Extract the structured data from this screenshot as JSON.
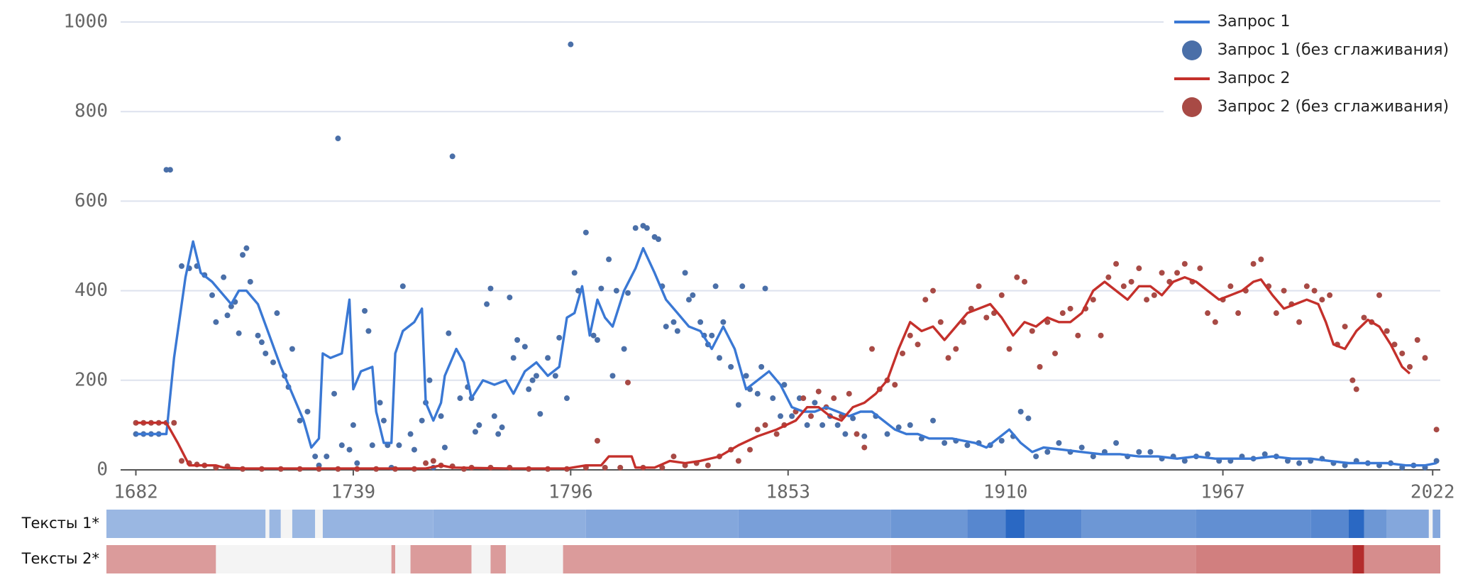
{
  "chart_data": {
    "type": "line",
    "xlim": [
      1678,
      2024
    ],
    "ylim": [
      0,
      1000
    ],
    "xticks": [
      1682,
      1739,
      1796,
      1853,
      1910,
      1967,
      2022
    ],
    "yticks": [
      0,
      200,
      400,
      600,
      800,
      1000
    ],
    "grid": true,
    "legend": "top-right",
    "series": [
      {
        "name": "Запрос 1",
        "type": "line",
        "color": "#3a78d4",
        "x": [
          1682,
          1686,
          1690,
          1692,
          1695,
          1697,
          1699,
          1702,
          1705,
          1707,
          1709,
          1711,
          1714,
          1717,
          1720,
          1723,
          1726,
          1728,
          1730,
          1731,
          1733,
          1736,
          1738,
          1739,
          1741,
          1744,
          1745,
          1747,
          1749,
          1750,
          1752,
          1755,
          1757,
          1758,
          1760,
          1762,
          1763,
          1766,
          1768,
          1770,
          1773,
          1776,
          1779,
          1781,
          1784,
          1787,
          1790,
          1793,
          1795,
          1797,
          1799,
          1801,
          1803,
          1805,
          1807,
          1810,
          1813,
          1815,
          1818,
          1821,
          1824,
          1827,
          1830,
          1833,
          1836,
          1839,
          1842,
          1845,
          1848,
          1851,
          1854,
          1857,
          1860,
          1863,
          1866,
          1869,
          1872,
          1875,
          1878,
          1881,
          1884,
          1887,
          1890,
          1893,
          1896,
          1899,
          1902,
          1905,
          1908,
          1911,
          1914,
          1917,
          1920,
          1925,
          1930,
          1935,
          1940,
          1945,
          1950,
          1955,
          1960,
          1965,
          1970,
          1975,
          1980,
          1985,
          1990,
          1995,
          2000,
          2005,
          2010,
          2015,
          2020,
          2023
        ],
        "values": [
          80,
          80,
          80,
          250,
          430,
          510,
          440,
          420,
          390,
          370,
          400,
          400,
          370,
          300,
          230,
          170,
          110,
          50,
          70,
          260,
          250,
          260,
          380,
          180,
          220,
          230,
          130,
          60,
          60,
          260,
          310,
          330,
          360,
          150,
          110,
          150,
          210,
          270,
          240,
          160,
          200,
          190,
          200,
          170,
          220,
          240,
          210,
          230,
          340,
          350,
          410,
          300,
          380,
          340,
          320,
          400,
          450,
          495,
          440,
          380,
          350,
          320,
          310,
          270,
          320,
          270,
          180,
          200,
          220,
          190,
          140,
          130,
          130,
          140,
          130,
          120,
          130,
          130,
          110,
          90,
          80,
          80,
          70,
          70,
          70,
          65,
          60,
          50,
          70,
          90,
          60,
          40,
          50,
          45,
          40,
          35,
          35,
          30,
          30,
          25,
          30,
          25,
          25,
          25,
          30,
          25,
          25,
          20,
          15,
          15,
          15,
          10,
          10,
          15
        ]
      },
      {
        "name": "Запрос 1 (без сглаживания)",
        "type": "scatter",
        "color": "#4a6fa8",
        "x": [
          1682,
          1684,
          1686,
          1688,
          1690,
          1691,
          1694,
          1696,
          1698,
          1700,
          1702,
          1703,
          1705,
          1706,
          1707,
          1708,
          1709,
          1710,
          1711,
          1712,
          1714,
          1715,
          1716,
          1718,
          1719,
          1721,
          1722,
          1723,
          1725,
          1727,
          1729,
          1730,
          1732,
          1734,
          1735,
          1736,
          1738,
          1739,
          1740,
          1742,
          1743,
          1744,
          1746,
          1747,
          1748,
          1749,
          1751,
          1752,
          1754,
          1755,
          1757,
          1758,
          1759,
          1760,
          1762,
          1763,
          1764,
          1765,
          1767,
          1769,
          1770,
          1771,
          1772,
          1774,
          1775,
          1776,
          1777,
          1778,
          1780,
          1781,
          1782,
          1784,
          1785,
          1786,
          1787,
          1788,
          1790,
          1792,
          1793,
          1795,
          1796,
          1797,
          1798,
          1800,
          1802,
          1803,
          1804,
          1806,
          1807,
          1808,
          1810,
          1811,
          1813,
          1815,
          1816,
          1818,
          1819,
          1820,
          1821,
          1823,
          1824,
          1826,
          1827,
          1828,
          1830,
          1831,
          1832,
          1833,
          1834,
          1835,
          1836,
          1838,
          1840,
          1841,
          1842,
          1843,
          1845,
          1846,
          1847,
          1849,
          1851,
          1852,
          1854,
          1856,
          1858,
          1860,
          1862,
          1864,
          1866,
          1868,
          1870,
          1873,
          1876,
          1879,
          1882,
          1885,
          1888,
          1891,
          1894,
          1897,
          1900,
          1903,
          1906,
          1909,
          1912,
          1914,
          1916,
          1918,
          1921,
          1924,
          1927,
          1930,
          1933,
          1936,
          1939,
          1942,
          1945,
          1948,
          1951,
          1954,
          1957,
          1960,
          1963,
          1966,
          1969,
          1972,
          1975,
          1978,
          1981,
          1984,
          1987,
          1990,
          1993,
          1996,
          1999,
          2002,
          2005,
          2008,
          2011,
          2014,
          2017,
          2020,
          2023
        ],
        "values": [
          80,
          80,
          80,
          80,
          670,
          670,
          455,
          450,
          455,
          435,
          390,
          330,
          430,
          345,
          365,
          375,
          305,
          480,
          495,
          420,
          300,
          285,
          260,
          240,
          350,
          210,
          185,
          270,
          110,
          130,
          30,
          10,
          30,
          170,
          740,
          55,
          45,
          100,
          15,
          355,
          310,
          55,
          150,
          110,
          55,
          5,
          55,
          410,
          80,
          45,
          110,
          150,
          200,
          5,
          120,
          50,
          305,
          700,
          160,
          185,
          160,
          85,
          100,
          370,
          405,
          120,
          80,
          95,
          385,
          250,
          290,
          275,
          180,
          200,
          210,
          125,
          250,
          210,
          295,
          160,
          950,
          440,
          400,
          530,
          300,
          290,
          405,
          470,
          210,
          400,
          270,
          395,
          540,
          545,
          540,
          520,
          515,
          410,
          320,
          330,
          310,
          440,
          380,
          390,
          330,
          300,
          280,
          300,
          410,
          250,
          330,
          230,
          145,
          410,
          210,
          180,
          170,
          230,
          405,
          160,
          120,
          190,
          120,
          160,
          100,
          150,
          100,
          120,
          100,
          80,
          115,
          75,
          120,
          80,
          95,
          100,
          70,
          110,
          60,
          65,
          55,
          60,
          55,
          65,
          75,
          130,
          115,
          30,
          40,
          60,
          40,
          50,
          30,
          40,
          60,
          30,
          40,
          40,
          25,
          30,
          20,
          30,
          35,
          20,
          20,
          30,
          25,
          35,
          30,
          20,
          15,
          20,
          25,
          15,
          10,
          20,
          15,
          10,
          15,
          5,
          10,
          5,
          20
        ]
      },
      {
        "name": "Запрос 2",
        "type": "line",
        "color": "#c4302b",
        "x": [
          1682,
          1690,
          1693,
          1696,
          1700,
          1703,
          1705,
          1710,
          1720,
          1730,
          1740,
          1750,
          1758,
          1762,
          1765,
          1780,
          1795,
          1800,
          1804,
          1806,
          1812,
          1813,
          1818,
          1822,
          1826,
          1830,
          1835,
          1840,
          1845,
          1850,
          1855,
          1858,
          1861,
          1864,
          1867,
          1870,
          1873,
          1876,
          1879,
          1882,
          1885,
          1888,
          1891,
          1894,
          1897,
          1900,
          1903,
          1906,
          1909,
          1912,
          1915,
          1918,
          1921,
          1924,
          1927,
          1930,
          1933,
          1936,
          1939,
          1942,
          1945,
          1948,
          1951,
          1954,
          1957,
          1960,
          1963,
          1966,
          1969,
          1972,
          1975,
          1977,
          1980,
          1983,
          1986,
          1989,
          1992,
          1994,
          1996,
          1999,
          2002,
          2005,
          2008,
          2011,
          2014,
          2016
        ],
        "values": [
          105,
          105,
          60,
          10,
          10,
          10,
          5,
          3,
          3,
          3,
          3,
          3,
          3,
          10,
          5,
          3,
          3,
          10,
          10,
          30,
          30,
          5,
          5,
          20,
          15,
          20,
          30,
          55,
          75,
          90,
          110,
          140,
          140,
          120,
          110,
          140,
          150,
          170,
          200,
          270,
          330,
          310,
          320,
          290,
          320,
          350,
          360,
          370,
          340,
          300,
          330,
          320,
          340,
          330,
          330,
          350,
          400,
          420,
          400,
          380,
          410,
          410,
          390,
          420,
          430,
          420,
          400,
          380,
          390,
          400,
          420,
          425,
          390,
          360,
          370,
          380,
          370,
          330,
          280,
          270,
          310,
          335,
          320,
          280,
          230,
          215
        ]
      },
      {
        "name": "Запрос 2 (без сглаживания)",
        "type": "scatter",
        "color": "#a84a45",
        "x": [
          1682,
          1684,
          1686,
          1688,
          1690,
          1692,
          1694,
          1696,
          1698,
          1700,
          1703,
          1706,
          1710,
          1715,
          1720,
          1725,
          1730,
          1735,
          1740,
          1745,
          1750,
          1755,
          1758,
          1760,
          1762,
          1765,
          1768,
          1770,
          1775,
          1780,
          1785,
          1790,
          1795,
          1800,
          1803,
          1805,
          1809,
          1811,
          1815,
          1820,
          1823,
          1826,
          1829,
          1832,
          1835,
          1838,
          1840,
          1843,
          1845,
          1847,
          1850,
          1852,
          1855,
          1857,
          1859,
          1861,
          1863,
          1865,
          1867,
          1869,
          1871,
          1873,
          1875,
          1877,
          1879,
          1881,
          1883,
          1885,
          1887,
          1889,
          1891,
          1893,
          1895,
          1897,
          1899,
          1901,
          1903,
          1905,
          1907,
          1909,
          1911,
          1913,
          1915,
          1917,
          1919,
          1921,
          1923,
          1925,
          1927,
          1929,
          1931,
          1933,
          1935,
          1937,
          1939,
          1941,
          1943,
          1945,
          1947,
          1949,
          1951,
          1953,
          1955,
          1957,
          1959,
          1961,
          1963,
          1965,
          1967,
          1969,
          1971,
          1973,
          1975,
          1977,
          1979,
          1981,
          1983,
          1985,
          1987,
          1989,
          1991,
          1993,
          1995,
          1997,
          1999,
          2001,
          2002,
          2004,
          2006,
          2008,
          2010,
          2012,
          2014,
          2016,
          2018,
          2020,
          2023
        ],
        "values": [
          105,
          105,
          105,
          105,
          105,
          105,
          20,
          15,
          12,
          10,
          5,
          8,
          2,
          2,
          2,
          2,
          2,
          2,
          2,
          2,
          2,
          2,
          15,
          20,
          10,
          8,
          2,
          5,
          5,
          5,
          2,
          2,
          2,
          5,
          65,
          5,
          5,
          195,
          5,
          5,
          30,
          10,
          15,
          10,
          30,
          45,
          20,
          45,
          90,
          100,
          80,
          100,
          130,
          160,
          120,
          175,
          140,
          160,
          120,
          170,
          80,
          50,
          270,
          180,
          200,
          190,
          260,
          300,
          280,
          380,
          400,
          330,
          250,
          270,
          330,
          360,
          410,
          340,
          350,
          390,
          270,
          430,
          420,
          310,
          230,
          330,
          260,
          350,
          360,
          300,
          360,
          380,
          300,
          430,
          460,
          410,
          420,
          450,
          380,
          390,
          440,
          420,
          440,
          460,
          420,
          450,
          350,
          330,
          380,
          410,
          350,
          400,
          460,
          470,
          410,
          350,
          400,
          370,
          330,
          410,
          400,
          380,
          390,
          280,
          320,
          200,
          180,
          340,
          330,
          390,
          310,
          280,
          260,
          230,
          290,
          250,
          90
        ]
      }
    ],
    "strips": [
      {
        "label": "Тексты 1*",
        "color": "#1e5fbf",
        "bins": [
          1674,
          1716,
          1717,
          1720,
          1723,
          1729,
          1731,
          1760,
          1800,
          1840,
          1880,
          1900,
          1910,
          1915,
          1930,
          1960,
          1990,
          2000,
          2004,
          2010,
          2021,
          2022,
          2024
        ],
        "values": [
          1,
          null,
          1,
          null,
          1,
          null,
          1.2,
          1.5,
          2,
          2.5,
          3,
          4,
          6,
          4,
          3,
          3.5,
          4,
          6,
          3,
          2,
          null,
          2
        ]
      },
      {
        "label": "Тексты 2*",
        "color": "#b02020",
        "bins": [
          1674,
          1703,
          1749,
          1750,
          1754,
          1770,
          1775,
          1779,
          1794,
          1880,
          1960,
          2001,
          2004,
          2024
        ],
        "values": [
          1,
          null,
          1,
          null,
          1,
          null,
          1,
          null,
          1,
          1.5,
          2,
          5,
          1.5
        ]
      }
    ]
  }
}
